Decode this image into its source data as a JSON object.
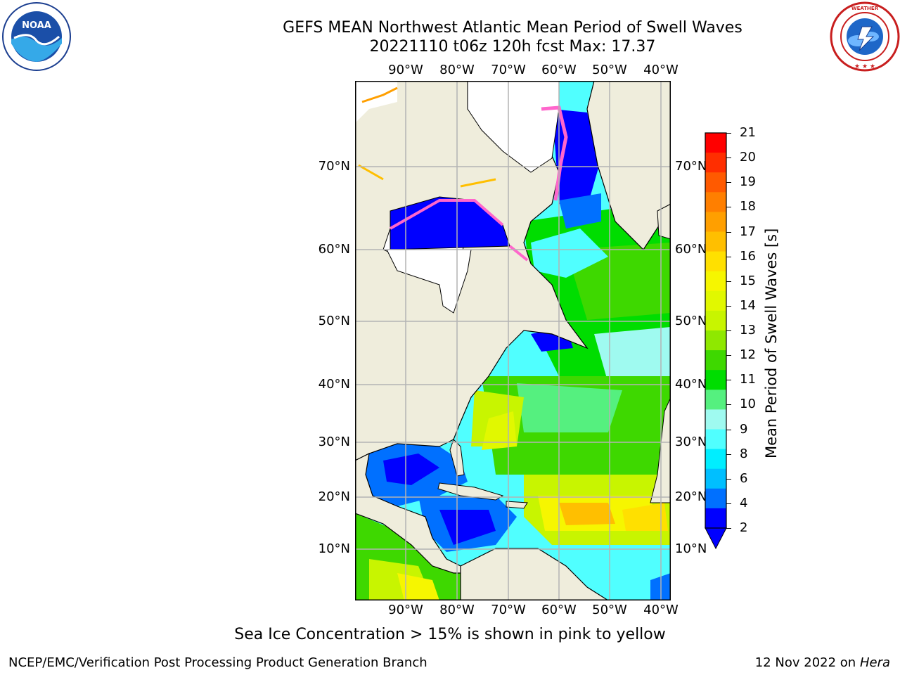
{
  "header": {
    "title_line1": "GEFS MEAN Northwest Atlantic Mean Period of Swell Waves",
    "title_line2": "20221110 t06z 120h fcst   Max: 17.37"
  },
  "logos": {
    "left": {
      "name": "NOAA",
      "text": "NOAA",
      "ring_text": "NATIONAL OCEANIC AND ATMOSPHERIC ADMINISTRATION · U.S. DEPARTMENT OF COMMERCE"
    },
    "right": {
      "name": "National Weather Service",
      "ring_text": "NATIONAL WEATHER SERVICE"
    }
  },
  "map": {
    "lon_labels": [
      "90°W",
      "80°W",
      "70°W",
      "60°W",
      "50°W",
      "40°W"
    ],
    "lat_labels": [
      "70°N",
      "60°N",
      "50°N",
      "40°N",
      "30°N",
      "20°N",
      "10°N"
    ],
    "colors": {
      "land": "#efeddc",
      "ice": "#ffffff",
      "grid": "#b3b3b3"
    }
  },
  "colorbar": {
    "title": "Mean Period of Swell Waves [s]",
    "labels": [
      "21",
      "20",
      "19",
      "18",
      "17",
      "16",
      "15",
      "14",
      "13",
      "12",
      "11",
      "10",
      "9",
      "8",
      "6",
      "4",
      "2"
    ],
    "colors": [
      "#ff0000",
      "#ff2e00",
      "#ff5a00",
      "#ff7f00",
      "#ff9f00",
      "#ffbf00",
      "#ffe000",
      "#f6f600",
      "#e1f800",
      "#c8f500",
      "#8fe800",
      "#3ed800",
      "#00dd00",
      "#55f07f",
      "#9ffaf0",
      "#50ffff",
      "#00eeff",
      "#00bfff",
      "#0070ff",
      "#0000ff"
    ],
    "extend_color": "#0000ff"
  },
  "note": "Sea Ice Concentration > 15% is shown in pink to yellow",
  "footer": {
    "left": "NCEP/EMC/Verification Post Processing Product Generation Branch",
    "right_date": "12 Nov 2022 on",
    "right_machine": "Hera"
  }
}
